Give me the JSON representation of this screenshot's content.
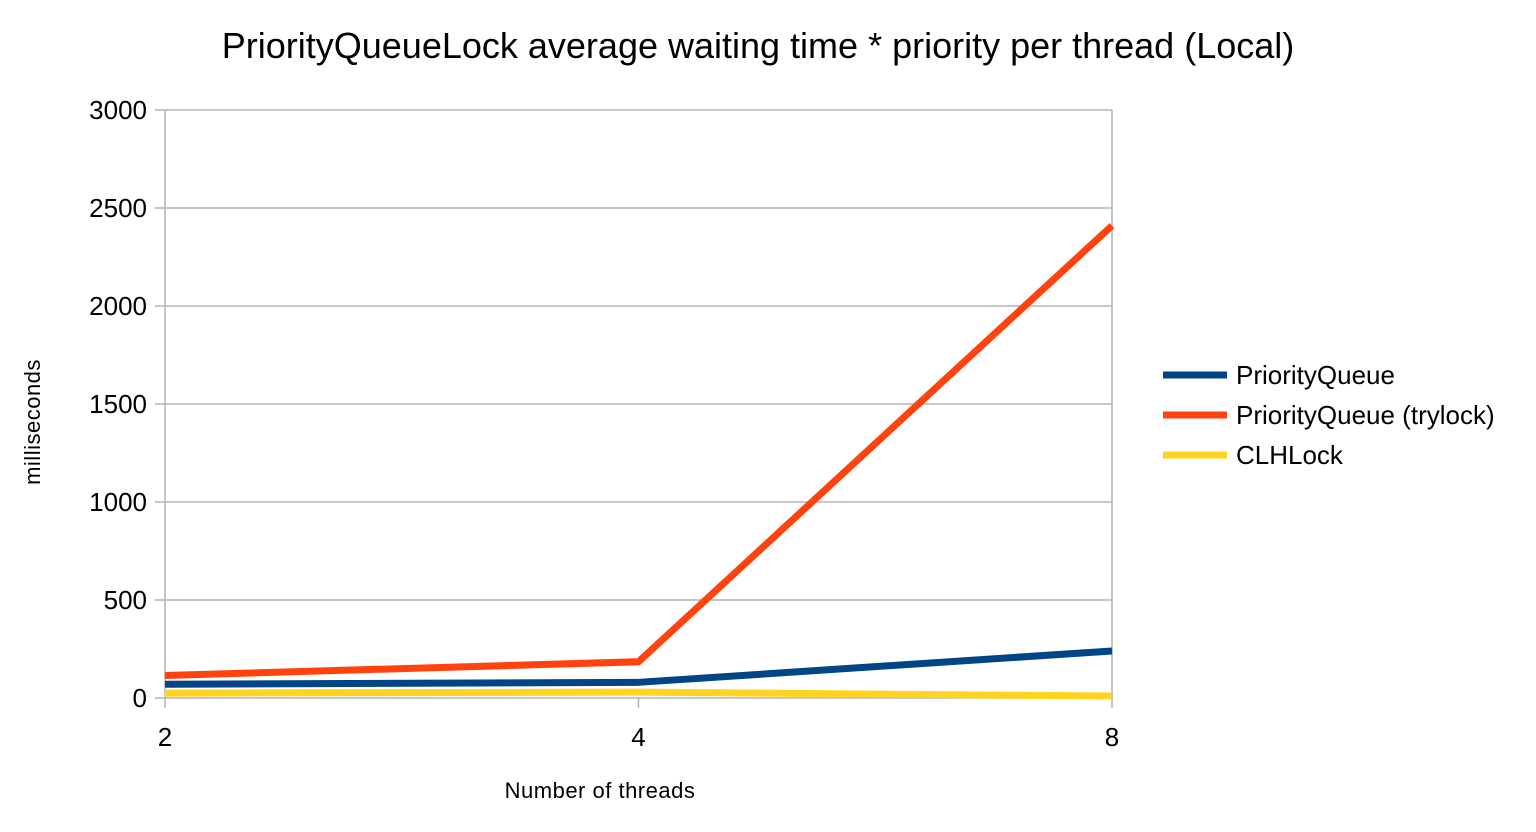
{
  "chart_data": {
    "type": "line",
    "title": "PriorityQueueLock average waiting time * priority per thread (Local)",
    "xlabel": "Number of threads",
    "ylabel": "milliseconds",
    "x_categories": [
      "2",
      "4",
      "8"
    ],
    "ylim": [
      0,
      3000
    ],
    "y_ticks": [
      0,
      500,
      1000,
      1500,
      2000,
      2500,
      3000
    ],
    "grid": true,
    "legend_position": "right",
    "series": [
      {
        "name": "PriorityQueue",
        "color": "#004586",
        "values": [
          70,
          80,
          240
        ]
      },
      {
        "name": "PriorityQueue (trylock)",
        "color": "#ff420e",
        "values": [
          115,
          185,
          2410
        ]
      },
      {
        "name": "CLHLock",
        "color": "#ffd320",
        "values": [
          25,
          30,
          10
        ]
      }
    ]
  }
}
